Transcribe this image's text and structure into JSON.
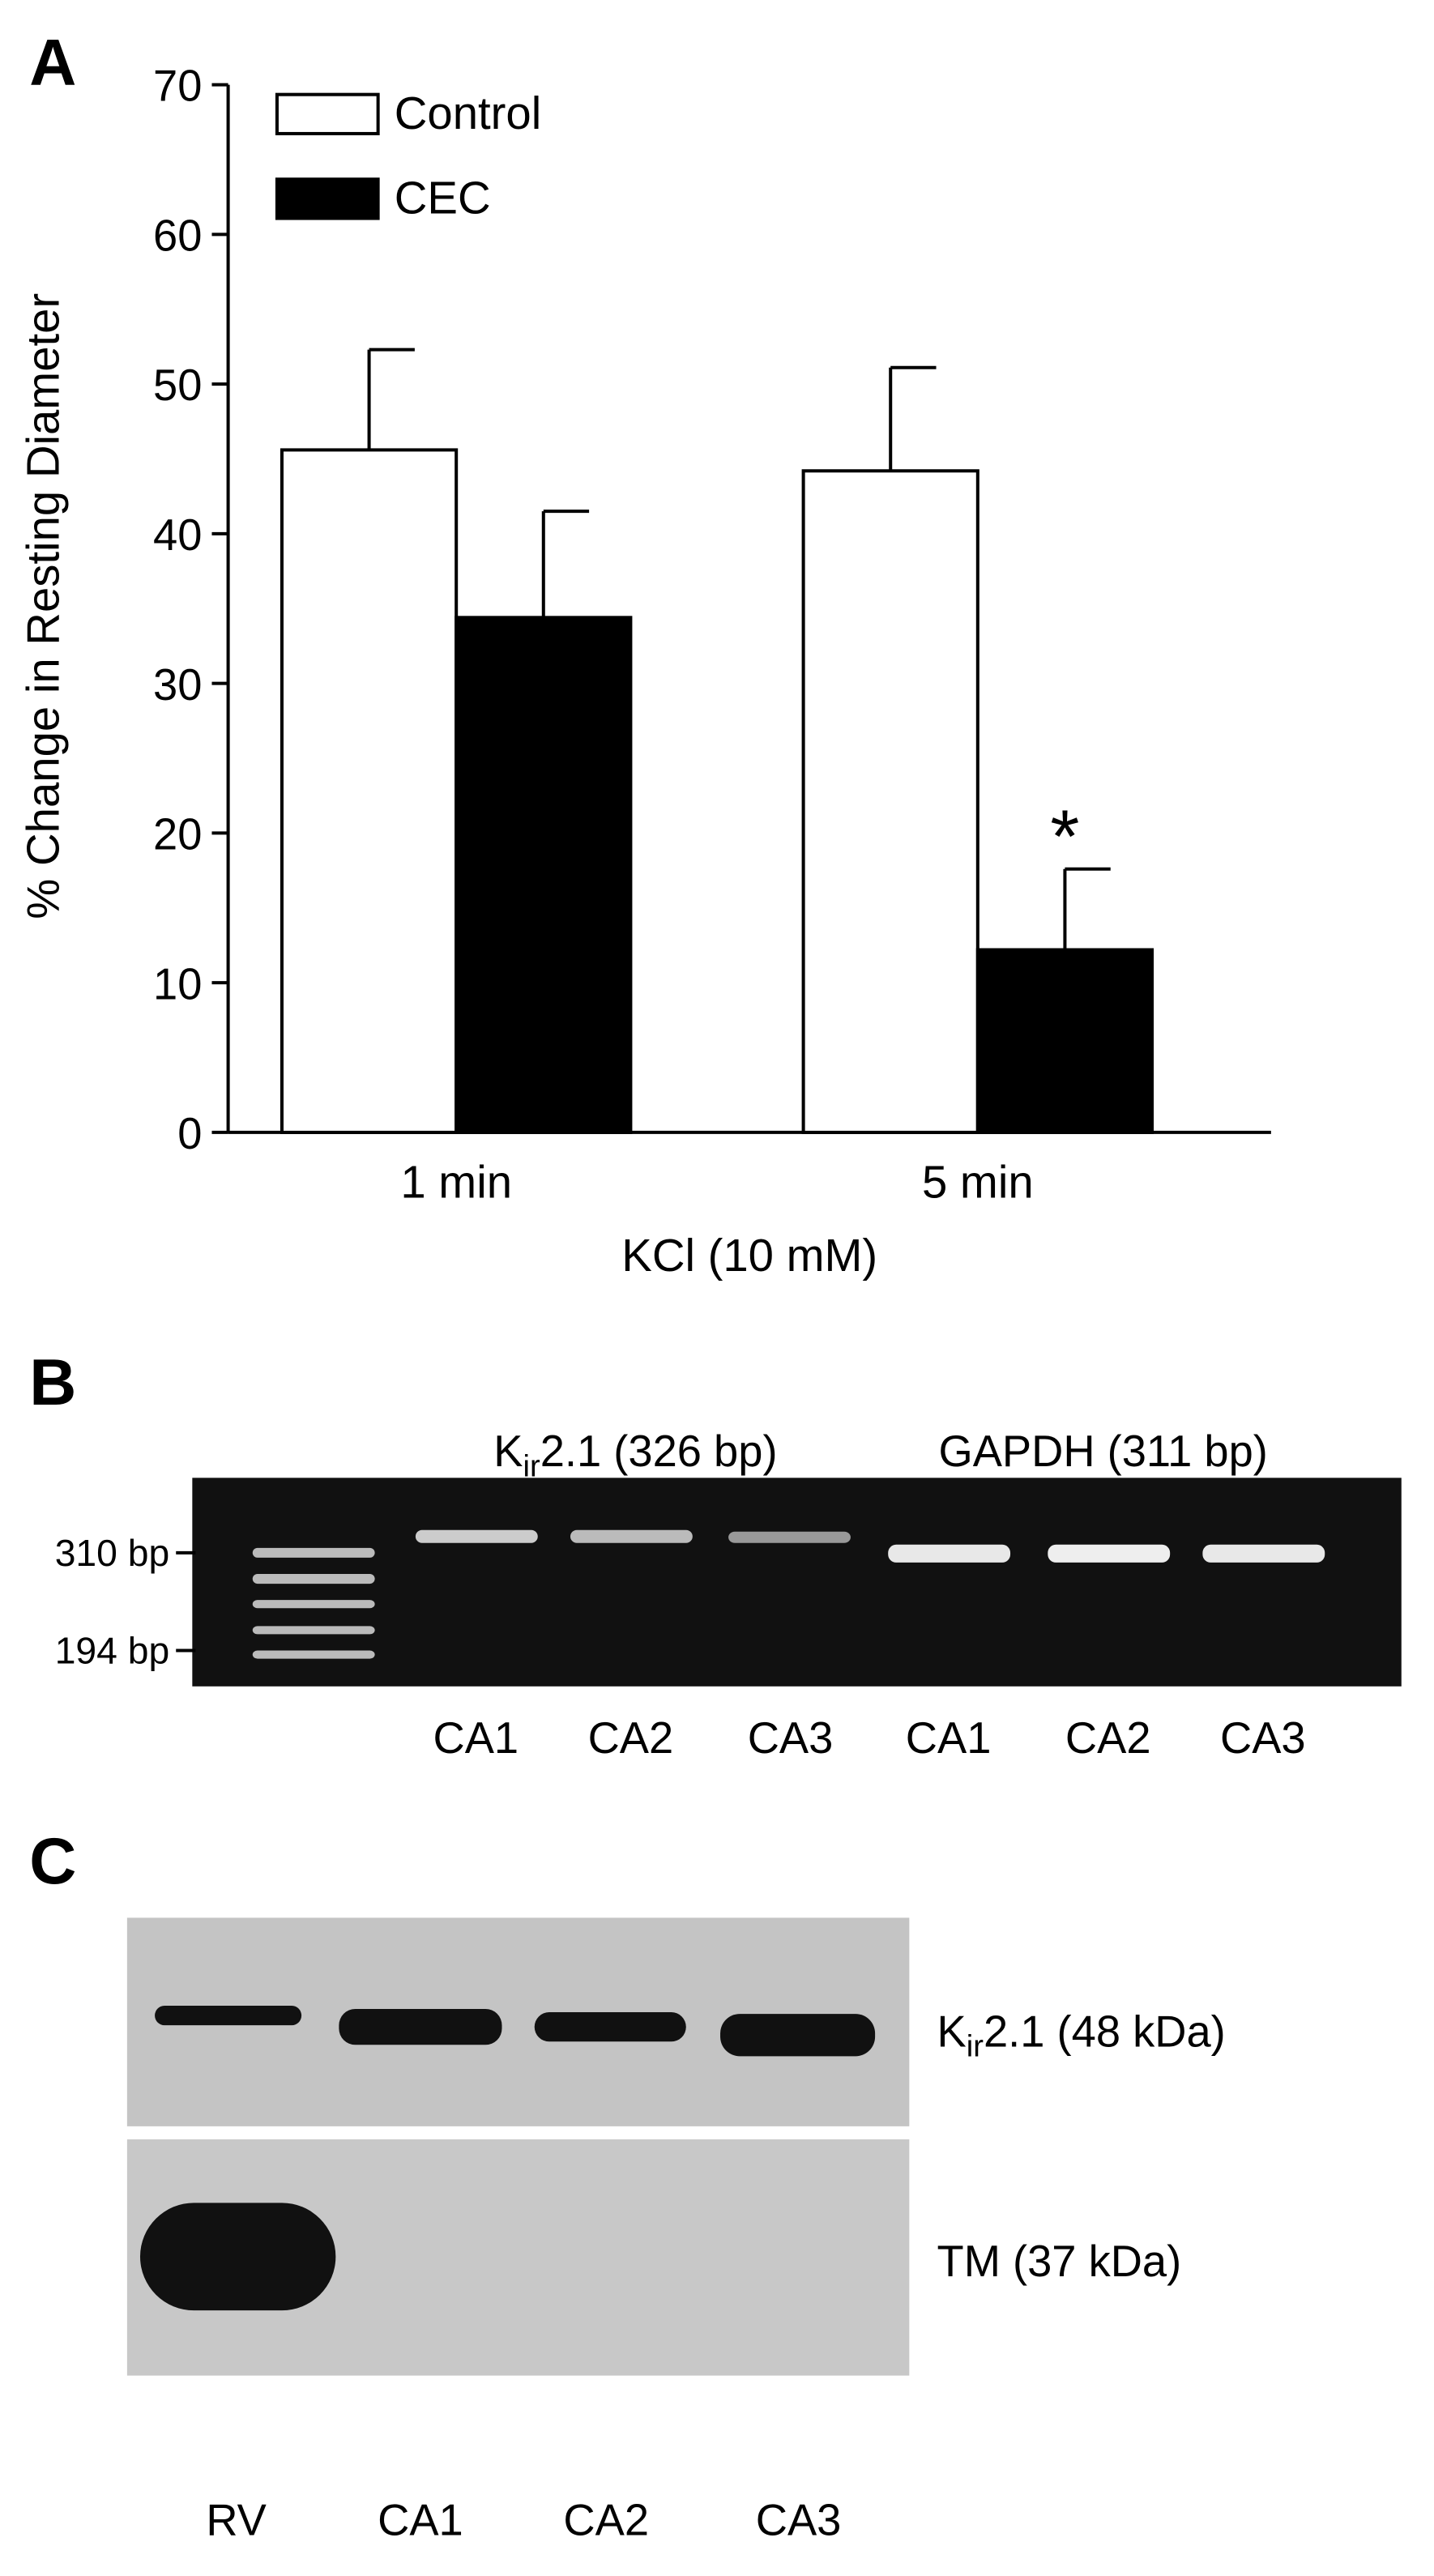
{
  "chart_data": {
    "type": "bar",
    "panel_label": "A",
    "ylabel": "% Change in Resting Diameter",
    "xlabel": "KCl (10 mM)",
    "categories": [
      "1 min",
      "5 min"
    ],
    "series": [
      {
        "name": "Control",
        "color": "#ffffff",
        "values": [
          45.6,
          44.2
        ],
        "errors": [
          6.7,
          6.9
        ]
      },
      {
        "name": "CEC",
        "color": "#000000",
        "values": [
          34.4,
          12.2
        ],
        "errors": [
          7.1,
          5.4
        ]
      }
    ],
    "annotation": "*",
    "ylim": [
      0,
      70
    ],
    "yticks": [
      0,
      10,
      20,
      30,
      40,
      50,
      60,
      70
    ],
    "grid": false,
    "legend": "upper left"
  },
  "panel_b": {
    "panel_label": "B",
    "groups": [
      {
        "main": "K",
        "sub": "ir",
        "rest": "2.1 (326 bp)"
      },
      {
        "main": "GAPDH (311 bp)"
      }
    ],
    "markers": [
      "310 bp",
      "194 bp"
    ],
    "lanes": [
      "CA1",
      "CA2",
      "CA3",
      "CA1",
      "CA2",
      "CA3"
    ]
  },
  "panel_c": {
    "panel_label": "C",
    "rows": [
      {
        "main": "K",
        "sub": "ir",
        "rest": "2.1 (48 kDa)"
      },
      {
        "main": "TM (37 kDa)"
      }
    ],
    "lanes": [
      "RV",
      "CA1",
      "CA2",
      "CA3"
    ]
  }
}
